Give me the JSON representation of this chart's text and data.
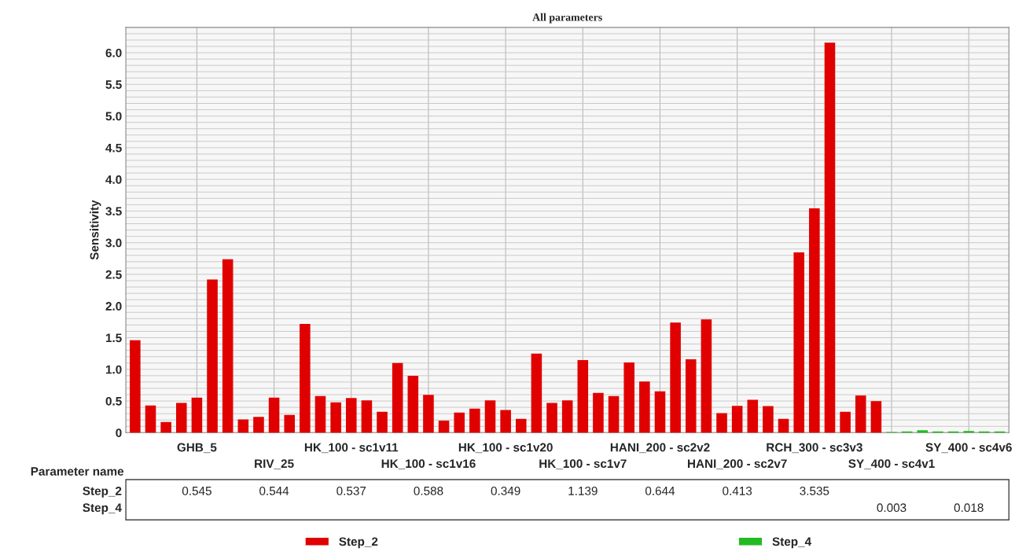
{
  "chart_data": {
    "type": "bar",
    "title": "All parameters",
    "ylabel": "Sensitivity",
    "xlabel": "Parameter name",
    "categories": [
      null,
      null,
      null,
      null,
      "GHB_5",
      null,
      null,
      null,
      null,
      "RIV_25",
      null,
      null,
      null,
      null,
      "HK_100 - sc1v11",
      null,
      null,
      null,
      null,
      "HK_100 - sc1v16",
      null,
      null,
      null,
      null,
      "HK_100 - sc1v20",
      null,
      null,
      null,
      null,
      "HK_100 - sc1v7",
      null,
      null,
      null,
      null,
      "HANI_200 - sc2v2",
      null,
      null,
      null,
      null,
      "HANI_200 - sc2v7",
      null,
      null,
      null,
      null,
      "RCH_300 - sc3v3",
      null,
      null,
      null,
      null,
      "SY_400 - sc4v1",
      null,
      null,
      null,
      null,
      "SY_400 - sc4v6",
      null,
      null
    ],
    "series": [
      {
        "name": "Step_2",
        "color": "#e00000",
        "values": [
          1.45,
          0.42,
          0.16,
          0.46,
          0.545,
          2.41,
          2.73,
          0.2,
          0.24,
          0.544,
          0.27,
          1.71,
          0.57,
          0.47,
          0.537,
          0.5,
          0.32,
          1.09,
          0.89,
          0.588,
          0.18,
          0.31,
          0.37,
          0.5,
          0.349,
          0.21,
          1.24,
          0.46,
          0.5,
          1.139,
          0.62,
          0.57,
          1.1,
          0.8,
          0.644,
          1.73,
          1.15,
          1.78,
          0.3,
          0.413,
          0.51,
          0.41,
          0.21,
          2.84,
          3.535,
          6.15,
          0.32,
          0.58,
          0.49,
          null,
          null,
          null,
          null,
          null,
          null,
          null,
          null
        ],
        "value_labels": [
          null,
          null,
          null,
          null,
          "0.545",
          null,
          null,
          null,
          null,
          "0.544",
          null,
          null,
          null,
          null,
          "0.537",
          null,
          null,
          null,
          null,
          "0.588",
          null,
          null,
          null,
          null,
          "0.349",
          null,
          null,
          null,
          null,
          "1.139",
          null,
          null,
          null,
          null,
          "0.644",
          null,
          null,
          null,
          null,
          "0.413",
          null,
          null,
          null,
          null,
          "3.535",
          null,
          null,
          null,
          null,
          null,
          null,
          null,
          null,
          null,
          null,
          null,
          null
        ]
      },
      {
        "name": "Step_4",
        "color": "#22bb22",
        "values": [
          null,
          null,
          null,
          null,
          null,
          null,
          null,
          null,
          null,
          null,
          null,
          null,
          null,
          null,
          null,
          null,
          null,
          null,
          null,
          null,
          null,
          null,
          null,
          null,
          null,
          null,
          null,
          null,
          null,
          null,
          null,
          null,
          null,
          null,
          null,
          null,
          null,
          null,
          null,
          null,
          null,
          null,
          null,
          null,
          null,
          null,
          null,
          null,
          null,
          0.003,
          0.01,
          0.03,
          0.01,
          0.01,
          0.018,
          0.01,
          0.01
        ],
        "value_labels": [
          null,
          null,
          null,
          null,
          null,
          null,
          null,
          null,
          null,
          null,
          null,
          null,
          null,
          null,
          null,
          null,
          null,
          null,
          null,
          null,
          null,
          null,
          null,
          null,
          null,
          null,
          null,
          null,
          null,
          null,
          null,
          null,
          null,
          null,
          null,
          null,
          null,
          null,
          null,
          null,
          null,
          null,
          null,
          null,
          null,
          null,
          null,
          null,
          null,
          "0.003",
          null,
          null,
          null,
          null,
          "0.018",
          null,
          null
        ]
      }
    ],
    "ylim": [
      0,
      6.4
    ],
    "yticks": [
      0,
      {
        "value": 0.1,
        "label": null
      },
      {
        "value": 0.2,
        "label": null
      },
      {
        "value": 0.3,
        "label": null
      },
      {
        "value": 0.4,
        "label": null
      },
      0.5,
      {
        "value": 0.6,
        "label": null
      },
      {
        "value": 0.7,
        "label": null
      },
      {
        "value": 0.8,
        "label": null
      },
      {
        "value": 0.9,
        "label": null
      },
      {
        "value": 1,
        "label": "1.0"
      },
      {
        "value": 1.1,
        "label": null
      },
      {
        "value": 1.2,
        "label": null
      },
      {
        "value": 1.3,
        "label": null
      },
      {
        "value": 1.4,
        "label": null
      },
      1.5,
      {
        "value": 1.6,
        "label": null
      },
      {
        "value": 1.7,
        "label": null
      },
      {
        "value": 1.8,
        "label": null
      },
      {
        "value": 1.9,
        "label": null
      },
      {
        "value": 2,
        "label": "2.0"
      },
      {
        "value": 2.1,
        "label": null
      },
      {
        "value": 2.2,
        "label": null
      },
      {
        "value": 2.3,
        "label": null
      },
      {
        "value": 2.4,
        "label": null
      },
      2.5,
      {
        "value": 2.6,
        "label": null
      },
      {
        "value": 2.7,
        "label": null
      },
      {
        "value": 2.8,
        "label": null
      },
      {
        "value": 2.9,
        "label": null
      },
      {
        "value": 3,
        "label": "3.0"
      },
      {
        "value": 3.1,
        "label": null
      },
      {
        "value": 3.2,
        "label": null
      },
      {
        "value": 3.3,
        "label": null
      },
      {
        "value": 3.4,
        "label": null
      },
      3.5,
      {
        "value": 3.6,
        "label": null
      },
      {
        "value": 3.7,
        "label": null
      },
      {
        "value": 3.8,
        "label": null
      },
      {
        "value": 3.9,
        "label": null
      },
      {
        "value": 4,
        "label": "4.0"
      },
      {
        "value": 4.1,
        "label": null
      },
      {
        "value": 4.2,
        "label": null
      },
      {
        "value": 4.3,
        "label": null
      },
      {
        "value": 4.4,
        "label": null
      },
      4.5,
      {
        "value": 4.6,
        "label": null
      },
      {
        "value": 4.7,
        "label": null
      },
      {
        "value": 4.8,
        "label": null
      },
      {
        "value": 4.9,
        "label": null
      },
      {
        "value": 5,
        "label": "5.0"
      },
      {
        "value": 5.1,
        "label": null
      },
      {
        "value": 5.2,
        "label": null
      },
      {
        "value": 5.3,
        "label": null
      },
      {
        "value": 5.4,
        "label": null
      },
      5.5,
      {
        "value": 5.6,
        "label": null
      },
      {
        "value": 5.7,
        "label": null
      },
      {
        "value": 5.8,
        "label": null
      },
      {
        "value": 5.9,
        "label": null
      },
      {
        "value": 6,
        "label": "6.0"
      },
      {
        "value": 6.1,
        "label": null
      },
      {
        "value": 6.2,
        "label": null
      },
      {
        "value": 6.3,
        "label": null
      }
    ],
    "grid": true,
    "legend": "bottom"
  }
}
